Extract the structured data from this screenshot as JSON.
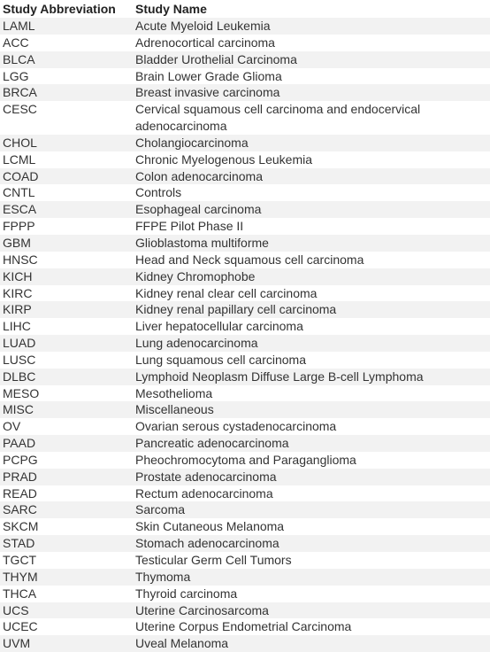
{
  "header": {
    "abbr": "Study Abbreviation",
    "name": "Study Name"
  },
  "rows": [
    {
      "abbr": "LAML",
      "name": "Acute Myeloid Leukemia"
    },
    {
      "abbr": "ACC",
      "name": "Adrenocortical carcinoma"
    },
    {
      "abbr": "BLCA",
      "name": "Bladder Urothelial Carcinoma"
    },
    {
      "abbr": "LGG",
      "name": "Brain Lower Grade Glioma"
    },
    {
      "abbr": "BRCA",
      "name": "Breast invasive carcinoma"
    },
    {
      "abbr": "CESC",
      "name": "Cervical squamous cell carcinoma and endocervical adenocarcinoma"
    },
    {
      "abbr": "CHOL",
      "name": "Cholangiocarcinoma"
    },
    {
      "abbr": "LCML",
      "name": "Chronic Myelogenous Leukemia"
    },
    {
      "abbr": "COAD",
      "name": "Colon adenocarcinoma"
    },
    {
      "abbr": "CNTL",
      "name": "Controls"
    },
    {
      "abbr": "ESCA",
      "name": "Esophageal carcinoma"
    },
    {
      "abbr": "FPPP",
      "name": "FFPE Pilot Phase II"
    },
    {
      "abbr": "GBM",
      "name": "Glioblastoma multiforme"
    },
    {
      "abbr": "HNSC",
      "name": "Head and Neck squamous cell carcinoma"
    },
    {
      "abbr": "KICH",
      "name": "Kidney Chromophobe"
    },
    {
      "abbr": "KIRC",
      "name": "Kidney renal clear cell carcinoma"
    },
    {
      "abbr": "KIRP",
      "name": "Kidney renal papillary cell carcinoma"
    },
    {
      "abbr": "LIHC",
      "name": "Liver hepatocellular carcinoma"
    },
    {
      "abbr": "LUAD",
      "name": "Lung adenocarcinoma"
    },
    {
      "abbr": "LUSC",
      "name": "Lung squamous cell carcinoma"
    },
    {
      "abbr": "DLBC",
      "name": "Lymphoid Neoplasm Diffuse Large B-cell Lymphoma"
    },
    {
      "abbr": "MESO",
      "name": "Mesothelioma"
    },
    {
      "abbr": "MISC",
      "name": "Miscellaneous"
    },
    {
      "abbr": "OV",
      "name": "Ovarian serous cystadenocarcinoma"
    },
    {
      "abbr": "PAAD",
      "name": "Pancreatic adenocarcinoma"
    },
    {
      "abbr": "PCPG",
      "name": "Pheochromocytoma and Paraganglioma"
    },
    {
      "abbr": "PRAD",
      "name": "Prostate adenocarcinoma"
    },
    {
      "abbr": "READ",
      "name": "Rectum adenocarcinoma"
    },
    {
      "abbr": "SARC",
      "name": "Sarcoma"
    },
    {
      "abbr": "SKCM",
      "name": "Skin Cutaneous Melanoma"
    },
    {
      "abbr": "STAD",
      "name": "Stomach adenocarcinoma"
    },
    {
      "abbr": "TGCT",
      "name": "Testicular Germ Cell Tumors"
    },
    {
      "abbr": "THYM",
      "name": "Thymoma"
    },
    {
      "abbr": "THCA",
      "name": "Thyroid carcinoma"
    },
    {
      "abbr": "UCS",
      "name": "Uterine Carcinosarcoma"
    },
    {
      "abbr": "UCEC",
      "name": "Uterine Corpus Endometrial Carcinoma"
    },
    {
      "abbr": "UVM",
      "name": "Uveal Melanoma"
    }
  ]
}
